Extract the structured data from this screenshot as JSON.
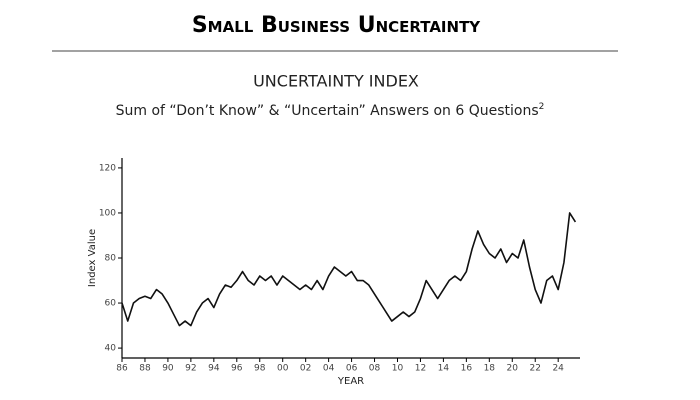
{
  "header": {
    "title": "Small Business Uncertainty"
  },
  "chart_data": {
    "type": "line",
    "title": "UNCERTAINTY INDEX",
    "subtitle": "Sum of “Don’t Know” & “Uncertain” Answers on 6 Questions",
    "subtitle_footnote": "2",
    "x_label": "YEAR",
    "y_label": "Index Value",
    "color": "#111111",
    "x": [
      1986,
      1986.5,
      1987,
      1987.5,
      1988,
      1988.5,
      1989,
      1989.5,
      1990,
      1990.5,
      1991,
      1991.5,
      1992,
      1992.5,
      1993,
      1993.5,
      1994,
      1994.5,
      1995,
      1995.5,
      1996,
      1996.5,
      1997,
      1997.5,
      1998,
      1998.5,
      1999,
      1999.5,
      2000,
      2000.5,
      2001,
      2001.5,
      2002,
      2002.5,
      2003,
      2003.5,
      2004,
      2004.5,
      2005,
      2005.5,
      2006,
      2006.5,
      2007,
      2007.5,
      2008,
      2008.5,
      2009,
      2009.5,
      2010,
      2010.5,
      2011,
      2011.5,
      2012,
      2012.5,
      2013,
      2013.5,
      2014,
      2014.5,
      2015,
      2015.5,
      2016,
      2016.5,
      2017,
      2017.5,
      2018,
      2018.5,
      2019,
      2019.5,
      2020,
      2020.5,
      2021,
      2021.5,
      2022,
      2022.5,
      2023,
      2023.5,
      2024,
      2024.5,
      2025,
      2025.5
    ],
    "values": [
      60,
      52,
      60,
      62,
      63,
      62,
      66,
      64,
      60,
      55,
      50,
      52,
      50,
      56,
      60,
      62,
      58,
      64,
      68,
      67,
      70,
      74,
      70,
      68,
      72,
      70,
      72,
      68,
      72,
      70,
      68,
      66,
      68,
      66,
      70,
      66,
      72,
      76,
      74,
      72,
      74,
      70,
      70,
      68,
      64,
      60,
      56,
      52,
      54,
      56,
      54,
      56,
      62,
      70,
      66,
      62,
      66,
      70,
      72,
      70,
      74,
      84,
      92,
      86,
      82,
      80,
      84,
      78,
      82,
      80,
      88,
      76,
      66,
      60,
      70,
      72,
      66,
      78,
      100,
      96
    ],
    "xlim": [
      1986,
      2025.9
    ],
    "ylim": [
      35.6,
      124.4
    ],
    "xticks": [
      {
        "value": 1986,
        "label": "86"
      },
      {
        "value": 1988,
        "label": "88"
      },
      {
        "value": 1990,
        "label": "90"
      },
      {
        "value": 1992,
        "label": "92"
      },
      {
        "value": 1994,
        "label": "94"
      },
      {
        "value": 1996,
        "label": "96"
      },
      {
        "value": 1998,
        "label": "98"
      },
      {
        "value": 2000,
        "label": "00"
      },
      {
        "value": 2002,
        "label": "02"
      },
      {
        "value": 2004,
        "label": "04"
      },
      {
        "value": 2006,
        "label": "06"
      },
      {
        "value": 2008,
        "label": "08"
      },
      {
        "value": 2010,
        "label": "10"
      },
      {
        "value": 2012,
        "label": "12"
      },
      {
        "value": 2014,
        "label": "14"
      },
      {
        "value": 2016,
        "label": "16"
      },
      {
        "value": 2018,
        "label": "18"
      },
      {
        "value": 2020,
        "label": "20"
      },
      {
        "value": 2022,
        "label": "22"
      },
      {
        "value": 2024,
        "label": "24"
      }
    ],
    "yticks": [
      40,
      60,
      80,
      100,
      120
    ],
    "grid": false
  }
}
